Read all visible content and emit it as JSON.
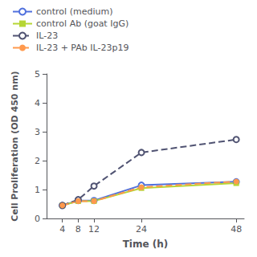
{
  "chart_data": {
    "type": "line",
    "xlabel": "Time (h)",
    "ylabel": "Cell Proliferation (OD 450 nm)",
    "x": [
      4,
      8,
      12,
      24,
      48
    ],
    "series": [
      {
        "name": "control (medium)",
        "values": [
          0.45,
          0.62,
          0.62,
          1.15,
          1.27
        ],
        "marker": "open circle",
        "line_style": "solid"
      },
      {
        "name": "control Ab (goat IgG)",
        "values": [
          0.45,
          0.6,
          0.6,
          1.05,
          1.22
        ],
        "marker": "filled square",
        "line_style": "solid"
      },
      {
        "name": "IL-23",
        "values": [
          0.45,
          0.65,
          1.12,
          2.28,
          2.73
        ],
        "marker": "open circle",
        "line_style": "dashed"
      },
      {
        "name": "IL-23 + PAb IL-23p19",
        "values": [
          0.45,
          0.6,
          0.6,
          1.08,
          1.28
        ],
        "marker": "filled circle",
        "line_style": "dashed"
      }
    ],
    "xlim": [
      0,
      50
    ],
    "xticks": [
      4,
      8,
      12,
      24,
      48
    ],
    "ylim": [
      0,
      5
    ],
    "yticks": [
      0,
      1,
      2,
      3,
      4,
      5
    ],
    "grid": false,
    "legend": "upper left"
  }
}
